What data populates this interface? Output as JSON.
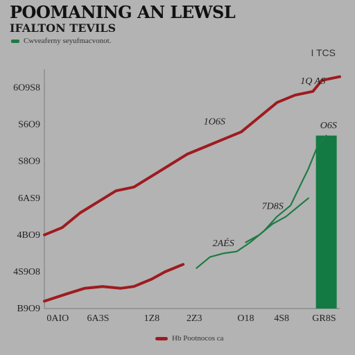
{
  "header": {
    "title": "POOMANING AN LEWSL",
    "subtitle": "IFALTON TEVILS",
    "legend_top": "Cwveaferny seyufmacvonot.",
    "corner_label": "I TCS"
  },
  "legend_bottom": "Hb Pootnocos ca",
  "colors": {
    "background": "#b3b3b3",
    "red_series": "#9e1b1f",
    "green_series": "#1f7a44",
    "bar": "#137a43",
    "grid_axis": "#7a7a7a"
  },
  "chart_data": {
    "type": "line",
    "title": "POOMANING AN LEWSL",
    "subtitle": "IFALTON TEVILS",
    "y_tick_labels": [
      "6O9S8",
      "S6O9",
      "S8O9",
      "6AS9",
      "4BO9",
      "4S9O8",
      "B9O9"
    ],
    "x_tick_labels": [
      "0AIO",
      "6A3S",
      "1Z8",
      "2Z3",
      "O18",
      "4S8",
      "GR8S"
    ],
    "y_values_for_ticks": [
      6,
      5,
      4,
      3,
      2,
      1,
      0
    ],
    "ylim": [
      0,
      6.5
    ],
    "xlim": [
      0,
      6.6
    ],
    "grid": false,
    "series": [
      {
        "color": "#9e1b1f",
        "x": [
          0,
          0.4,
          0.8,
          1.2,
          1.6,
          2.0,
          2.4,
          2.8,
          3.2,
          3.6,
          4.0,
          4.4,
          4.8,
          5.2,
          5.6,
          6.0,
          6.2,
          6.6
        ],
        "y": [
          2.0,
          2.2,
          2.6,
          2.9,
          3.2,
          3.3,
          3.6,
          3.9,
          4.2,
          4.4,
          4.6,
          4.8,
          5.2,
          5.6,
          5.8,
          5.9,
          6.2,
          6.3
        ]
      },
      {
        "color": "#9e1b1f",
        "x": [
          0,
          0.5,
          0.9,
          1.3,
          1.7,
          2.0,
          2.4,
          2.7,
          3.1
        ],
        "y": [
          0.2,
          0.4,
          0.55,
          0.6,
          0.55,
          0.6,
          0.8,
          1.0,
          1.2
        ]
      },
      {
        "color": "#1f7a44",
        "x": [
          3.4,
          3.7,
          4.0,
          4.3,
          4.6,
          4.9,
          5.2,
          5.5,
          5.7,
          5.9,
          6.1,
          6.3
        ],
        "y": [
          1.1,
          1.4,
          1.5,
          1.55,
          1.8,
          2.1,
          2.5,
          2.8,
          3.3,
          3.8,
          4.4,
          4.7
        ]
      },
      {
        "color": "#1f7a44",
        "x": [
          4.5,
          4.8,
          5.1,
          5.4,
          5.7,
          5.9
        ],
        "y": [
          1.8,
          2.0,
          2.3,
          2.5,
          2.8,
          3.0
        ]
      }
    ],
    "bars": [
      {
        "label": "GR8S",
        "x": 6.3,
        "value": 4.7,
        "color": "#137a43"
      }
    ],
    "annotations": [
      {
        "text": "1Q AS",
        "x": 6.0,
        "y": 6.1
      },
      {
        "text": "1O6S",
        "x": 3.8,
        "y": 5.0
      },
      {
        "text": "7D8S",
        "x": 5.1,
        "y": 2.7
      },
      {
        "text": "O6S",
        "x": 6.35,
        "y": 4.9
      },
      {
        "text": "2AÉS",
        "x": 4.0,
        "y": 1.7
      }
    ]
  }
}
